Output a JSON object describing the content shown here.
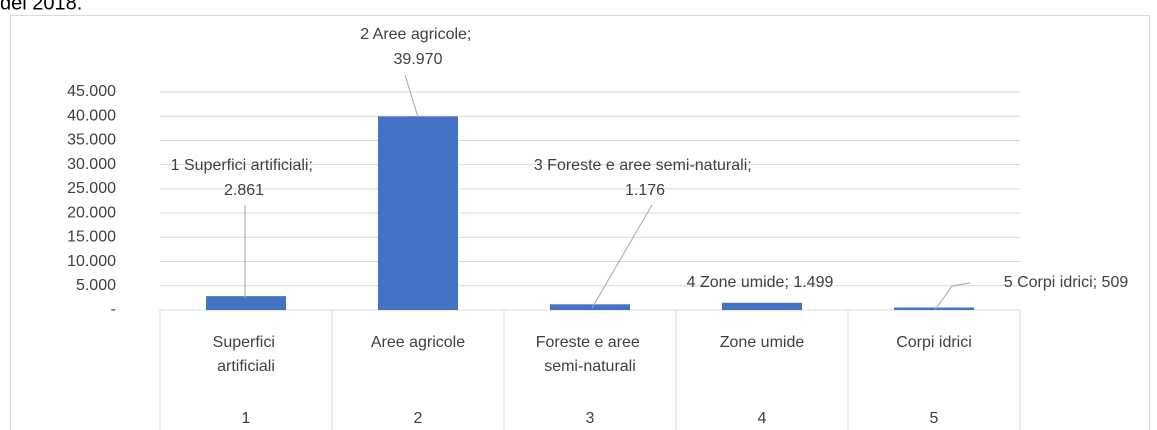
{
  "header_text": "del 2018.",
  "chart_data": {
    "type": "bar",
    "categories": [
      "Superfici artificiali",
      "Aree agricole",
      "Foreste e aree semi-naturali",
      "Zone umide",
      "Corpi idrici"
    ],
    "category_codes": [
      "1",
      "2",
      "3",
      "4",
      "5"
    ],
    "values": [
      2861,
      39970,
      1176,
      1499,
      509
    ],
    "value_labels": [
      "1 Superfici artificiali; 2.861",
      "2 Aree agricole; 39.970",
      "3 Foreste e aree semi-naturali; 1.176",
      "4 Zone umide;  1.499",
      "5 Corpi idrici;  509"
    ],
    "color": "#4472c4",
    "ylim": [
      0,
      45000
    ],
    "yticks": [
      {
        "value": 0,
        "label": "-"
      },
      {
        "value": 5000,
        "label": "5.000"
      },
      {
        "value": 10000,
        "label": "10.000"
      },
      {
        "value": 15000,
        "label": "15.000"
      },
      {
        "value": 20000,
        "label": "20.000"
      },
      {
        "value": 25000,
        "label": "25.000"
      },
      {
        "value": 30000,
        "label": "30.000"
      },
      {
        "value": 35000,
        "label": "35.000"
      },
      {
        "value": 40000,
        "label": "40.000"
      },
      {
        "value": 45000,
        "label": "45.000"
      }
    ],
    "grid": true
  }
}
